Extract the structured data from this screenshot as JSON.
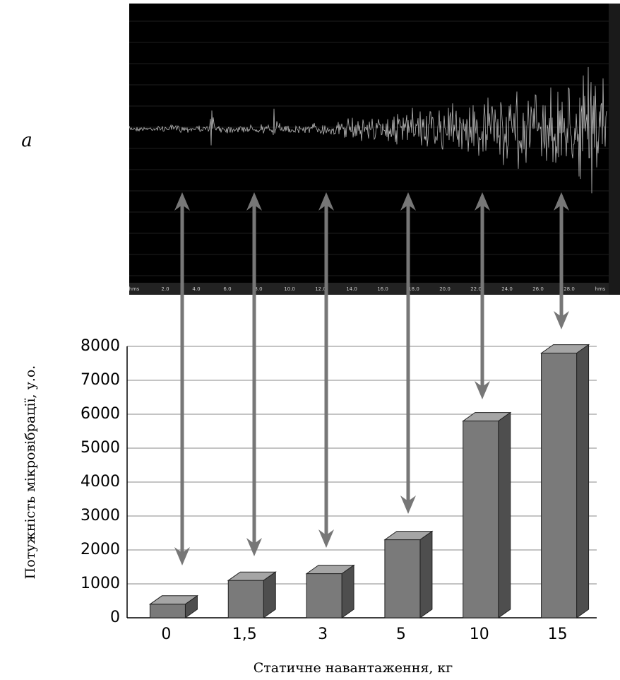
{
  "panel_label": "а",
  "waveform": {
    "time_labels": [
      "hms",
      "2.0",
      "4.0",
      "6.0",
      "8.0",
      "10.0",
      "12.0",
      "14.0",
      "16.0",
      "18.0",
      "20.0",
      "22.0",
      "24.0",
      "26.0",
      "28.0",
      "hms"
    ]
  },
  "chart_data": {
    "type": "bar",
    "x_label": "Статичне навантаження, кг",
    "y_label": "Потужність мікровібрації, у.о.",
    "categories": [
      "0",
      "1,5",
      "3",
      "5",
      "10",
      "15"
    ],
    "values": [
      400,
      1100,
      1300,
      2300,
      5800,
      7800
    ],
    "color": "#7a7a7a",
    "ylim": [
      0,
      8000
    ],
    "yticks": [
      0,
      1000,
      2000,
      3000,
      4000,
      5000,
      6000,
      7000,
      8000
    ],
    "grid": true
  }
}
